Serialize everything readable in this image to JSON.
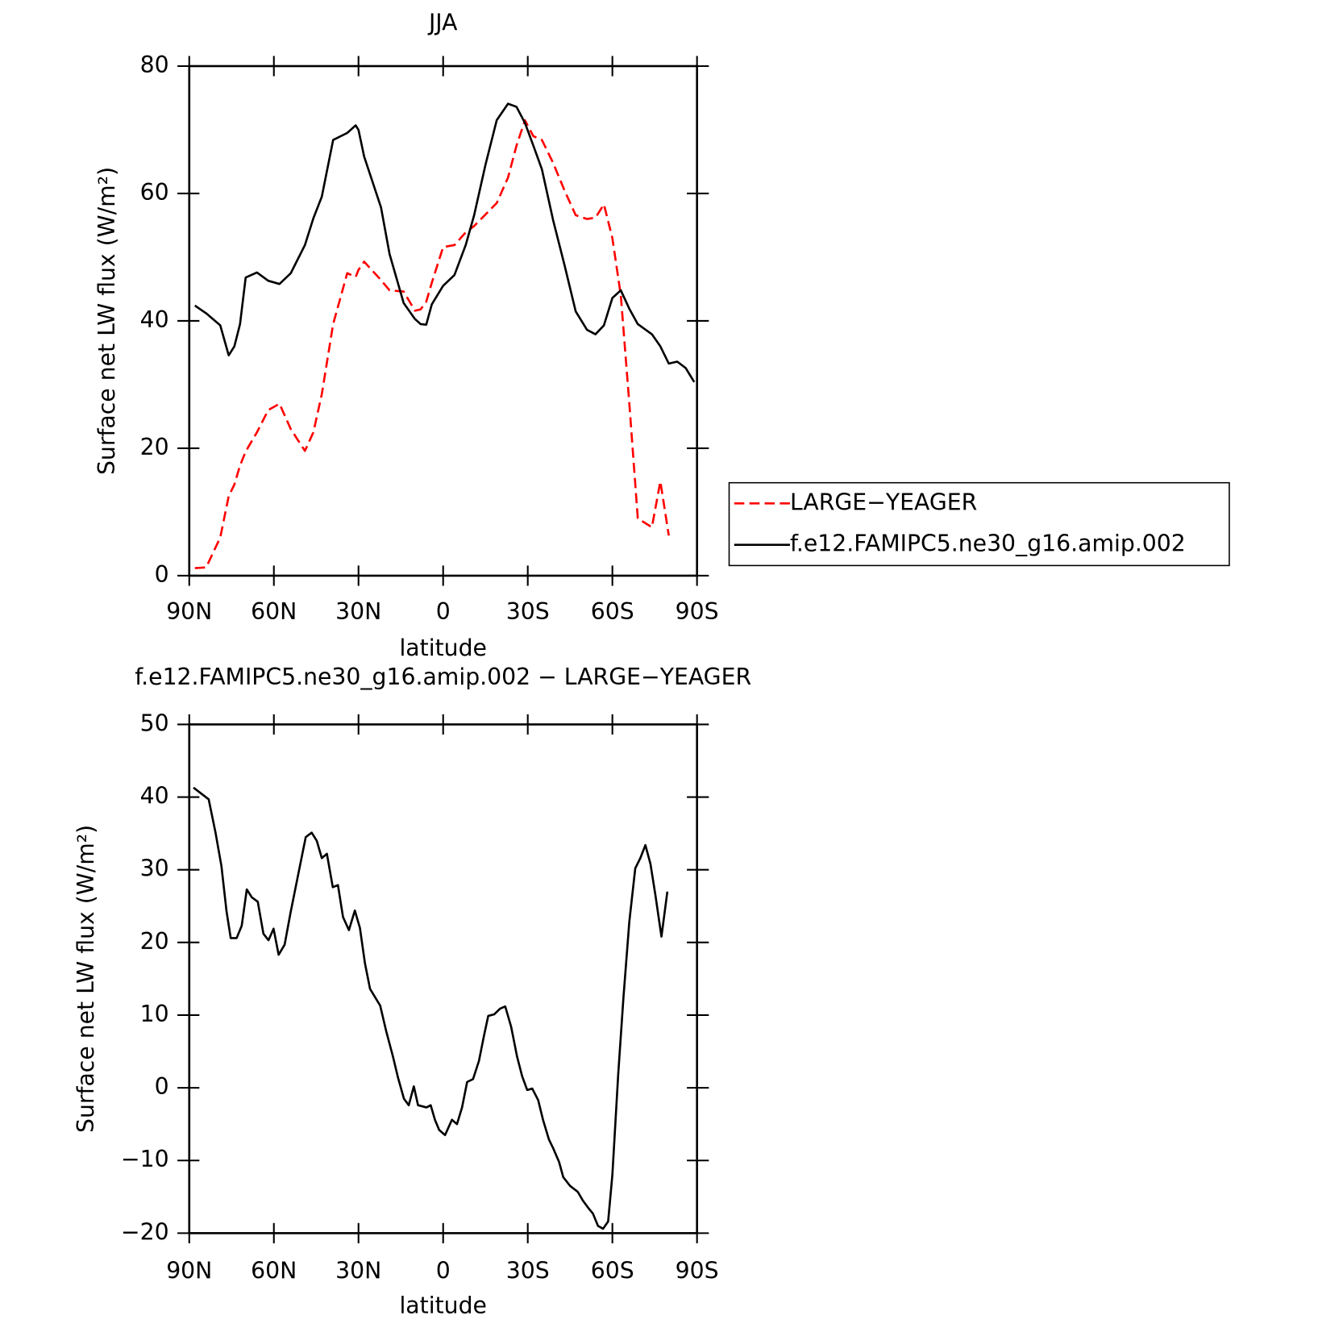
{
  "chart_data": [
    {
      "type": "line",
      "title": "JJA",
      "xlabel": "latitude",
      "ylabel": "Surface net LW flux (W/m²)",
      "xlim": [
        90,
        -90
      ],
      "ylim": [
        0,
        80
      ],
      "xticks": [
        {
          "value": 90,
          "label": "90N"
        },
        {
          "value": 60,
          "label": "60N"
        },
        {
          "value": 30,
          "label": "30N"
        },
        0,
        {
          "value": -30,
          "label": "30S"
        },
        {
          "value": -60,
          "label": "60S"
        },
        {
          "value": -90,
          "label": "90S"
        }
      ],
      "yticks": [
        0,
        20,
        40,
        60,
        80
      ],
      "legend": "right",
      "x": [
        88,
        84,
        79,
        76,
        74,
        72,
        70,
        66,
        62,
        58,
        54,
        49,
        46,
        43,
        39,
        34,
        31,
        30,
        28,
        22,
        19,
        14,
        10,
        8,
        6,
        4,
        0,
        -4,
        -8,
        -11,
        -15,
        -19,
        -23,
        -26,
        -29,
        -32,
        -35,
        -39,
        -43,
        -47,
        -51,
        -54,
        -57,
        -60,
        -63,
        -66,
        -69,
        -74,
        -77,
        -80,
        -83,
        -86,
        -89
      ],
      "series": [
        {
          "name": "LARGE−YEAGER",
          "color": "#ff0000",
          "line_style": "dashed",
          "values": [
            1.2,
            1.3,
            6,
            12.5,
            14.3,
            17.3,
            19.5,
            22.5,
            26,
            27,
            23,
            19.6,
            22.5,
            28.5,
            39.5,
            47.5,
            46.9,
            48,
            49.3,
            46.4,
            44.8,
            44.6,
            41.6,
            41.8,
            43,
            46,
            51.6,
            51.9,
            53.9,
            54.9,
            56.7,
            58.5,
            62.5,
            67.5,
            71.5,
            69,
            68.4,
            64.8,
            60.5,
            56.6,
            56,
            56.2,
            58.3,
            53,
            44,
            27,
            9,
            7.6,
            14.8,
            6.3,
            null,
            null,
            null
          ]
        },
        {
          "name": "f.e12.FAMIPC5.ne30_g16.amip.002",
          "color": "#000000",
          "line_style": "solid",
          "values": [
            42.4,
            41.2,
            39.3,
            34.6,
            36,
            39.5,
            46.8,
            47.6,
            46.3,
            45.8,
            47.5,
            51.9,
            56.1,
            59.5,
            68.4,
            69.5,
            70.7,
            70,
            65.8,
            57.8,
            50.5,
            42.8,
            40.3,
            39.5,
            39.4,
            42.6,
            45.5,
            47.2,
            51.9,
            56.6,
            64.5,
            71.5,
            74.1,
            73.6,
            71.1,
            67.5,
            63.8,
            55.8,
            48.8,
            41.5,
            38.6,
            37.9,
            39.3,
            43.6,
            44.8,
            41.9,
            39.5,
            37.9,
            36,
            33.3,
            33.6,
            32.6,
            30.4
          ]
        }
      ]
    },
    {
      "type": "line",
      "title": "f.e12.FAMIPC5.ne30_g16.amip.002 − LARGE−YEAGER",
      "xlabel": "latitude",
      "ylabel": "Surface net LW flux (W/m²)",
      "xlim": [
        90,
        -90
      ],
      "ylim": [
        -20,
        50
      ],
      "xticks": [
        {
          "value": 90,
          "label": "90N"
        },
        {
          "value": 60,
          "label": "60N"
        },
        {
          "value": 30,
          "label": "30N"
        },
        0,
        {
          "value": -30,
          "label": "30S"
        },
        {
          "value": -60,
          "label": "60S"
        },
        {
          "value": -90,
          "label": "90S"
        }
      ],
      "yticks": [
        {
          "value": -20,
          "label": "−20"
        },
        {
          "value": -10,
          "label": "−10"
        },
        0,
        10,
        20,
        30,
        40,
        50
      ],
      "x": [
        88.5,
        83.1,
        80.7,
        78.6,
        76.8,
        75.3,
        73.2,
        71.4,
        69.6,
        67.8,
        65.7,
        63.7,
        61.9,
        60.1,
        58.3,
        56.2,
        54.1,
        51.1,
        48.7,
        46.6,
        44.8,
        43,
        41.2,
        39.1,
        37.3,
        35.5,
        33.4,
        31.3,
        29.5,
        27.7,
        25.9,
        22.3,
        20.2,
        17.8,
        16,
        13.9,
        12.2,
        10.4,
        8.9,
        5.9,
        4.4,
        2.9,
        1.4,
        -0.7,
        -3.1,
        -4.9,
        -6.7,
        -8.5,
        -10.6,
        -12.7,
        -14.5,
        -16,
        -18.1,
        -20.2,
        -22,
        -24.1,
        -26.2,
        -28,
        -29.8,
        -31.6,
        -33.7,
        -35.4,
        -37.5,
        -39,
        -41.1,
        -42.6,
        -45,
        -47.7,
        -49.5,
        -51.6,
        -53.1,
        -54.9,
        -56.7,
        -58.5,
        -60,
        -62.1,
        -63.9,
        -66,
        -68.1,
        -69.9,
        -71.7,
        -73.5,
        -75.3,
        -77.4,
        -79.5
      ],
      "series": [
        {
          "color": "#000000",
          "line_style": "solid",
          "values": [
            41.3,
            39.7,
            35.1,
            30.5,
            24.3,
            20.6,
            20.6,
            22.3,
            27.3,
            26.2,
            25.6,
            21.2,
            20.3,
            21.9,
            18.3,
            19.7,
            24.1,
            29.9,
            34.5,
            35.1,
            34,
            31.6,
            32.2,
            27.6,
            27.9,
            23.5,
            21.7,
            24.4,
            22,
            17.1,
            13.6,
            11.3,
            7.8,
            4.3,
            1.4,
            -1.5,
            -2.4,
            0.2,
            -2.4,
            -2.7,
            -2.4,
            -4.4,
            -5.8,
            -6.5,
            -4.4,
            -5,
            -2.7,
            0.8,
            1.2,
            3.7,
            7.2,
            9.9,
            10.1,
            10.9,
            11.2,
            8.4,
            4.3,
            1.6,
            -0.3,
            -0.1,
            -1.7,
            -4.4,
            -7.1,
            -8.3,
            -10.2,
            -12.3,
            -13.5,
            -14.3,
            -15.5,
            -16.6,
            -17.3,
            -19,
            -19.4,
            -18.4,
            -12,
            2,
            12.4,
            22.9,
            30.2,
            31.6,
            33.4,
            30.8,
            26.4,
            20.8,
            27
          ]
        }
      ]
    }
  ]
}
